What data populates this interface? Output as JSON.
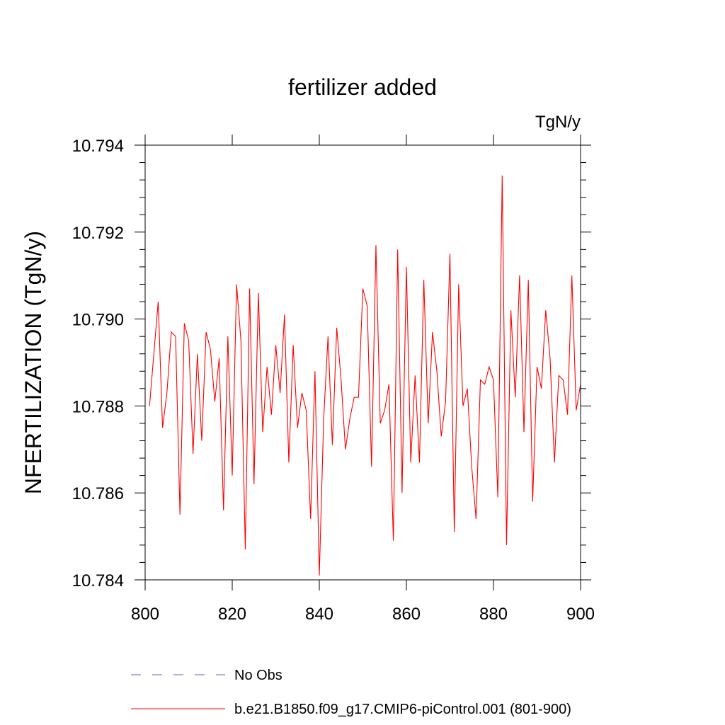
{
  "chart_data": {
    "type": "line",
    "title": "fertilizer added",
    "units_label": "TgN/y",
    "ylabel": "NFERTILIZATION  (TgN/y)",
    "xlabel": "",
    "xlim": [
      800,
      900
    ],
    "ylim": [
      10.784,
      10.794
    ],
    "x_ticks": [
      800,
      820,
      840,
      860,
      880,
      900
    ],
    "x_tick_labels": [
      "800",
      "820",
      "840",
      "860",
      "880",
      "900"
    ],
    "y_ticks": [
      10.784,
      10.786,
      10.788,
      10.79,
      10.792,
      10.794
    ],
    "y_tick_labels": [
      "10.784",
      "10.786",
      "10.788",
      "10.790",
      "10.792",
      "10.794"
    ],
    "grid": false,
    "legend_position": "bottom",
    "series": [
      {
        "name": "b.e21.B1850.f09_g17.CMIP6-piControl.001 (801-900)",
        "color": "#ff0000",
        "style": "solid",
        "x": [
          801,
          802,
          803,
          804,
          805,
          806,
          807,
          808,
          809,
          810,
          811,
          812,
          813,
          814,
          815,
          816,
          817,
          818,
          819,
          820,
          821,
          822,
          823,
          824,
          825,
          826,
          827,
          828,
          829,
          830,
          831,
          832,
          833,
          834,
          835,
          836,
          837,
          838,
          839,
          840,
          841,
          842,
          843,
          844,
          845,
          846,
          847,
          848,
          849,
          850,
          851,
          852,
          853,
          854,
          855,
          856,
          857,
          858,
          859,
          860,
          861,
          862,
          863,
          864,
          865,
          866,
          867,
          868,
          869,
          870,
          871,
          872,
          873,
          874,
          875,
          876,
          877,
          878,
          879,
          880,
          881,
          882,
          883,
          884,
          885,
          886,
          887,
          888,
          889,
          890,
          891,
          892,
          893,
          894,
          895,
          896,
          897,
          898,
          899,
          900
        ],
        "y": [
          10.788,
          10.7892,
          10.7904,
          10.7875,
          10.7883,
          10.7897,
          10.7896,
          10.7855,
          10.7899,
          10.7895,
          10.7869,
          10.7892,
          10.7872,
          10.7897,
          10.7893,
          10.7881,
          10.7891,
          10.7856,
          10.7896,
          10.7864,
          10.7908,
          10.7895,
          10.7847,
          10.7907,
          10.7862,
          10.7906,
          10.7874,
          10.7889,
          10.7878,
          10.7894,
          10.7883,
          10.7901,
          10.7867,
          10.7894,
          10.7875,
          10.7883,
          10.7879,
          10.7854,
          10.7888,
          10.7841,
          10.7877,
          10.7896,
          10.7871,
          10.7898,
          10.7886,
          10.787,
          10.7877,
          10.7882,
          10.7882,
          10.7907,
          10.7903,
          10.7866,
          10.7917,
          10.7876,
          10.7879,
          10.7885,
          10.7849,
          10.7916,
          10.786,
          10.7912,
          10.7867,
          10.7887,
          10.7867,
          10.7909,
          10.7876,
          10.7897,
          10.7888,
          10.7873,
          10.7881,
          10.7915,
          10.7851,
          10.7908,
          10.788,
          10.7884,
          10.7866,
          10.7854,
          10.7886,
          10.7885,
          10.7889,
          10.7886,
          10.7859,
          10.7933,
          10.7848,
          10.7902,
          10.7882,
          10.791,
          10.7874,
          10.7909,
          10.7858,
          10.7889,
          10.7884,
          10.7902,
          10.7891,
          10.7867,
          10.7887,
          10.7886,
          10.7878,
          10.791,
          10.7879,
          10.7885
        ]
      }
    ],
    "legend": [
      {
        "label": "No Obs",
        "color": "#6a5acd",
        "style": "dashed"
      },
      {
        "label": "b.e21.B1850.f09_g17.CMIP6-piControl.001 (801-900)",
        "color": "#ff0000",
        "style": "solid"
      }
    ]
  }
}
